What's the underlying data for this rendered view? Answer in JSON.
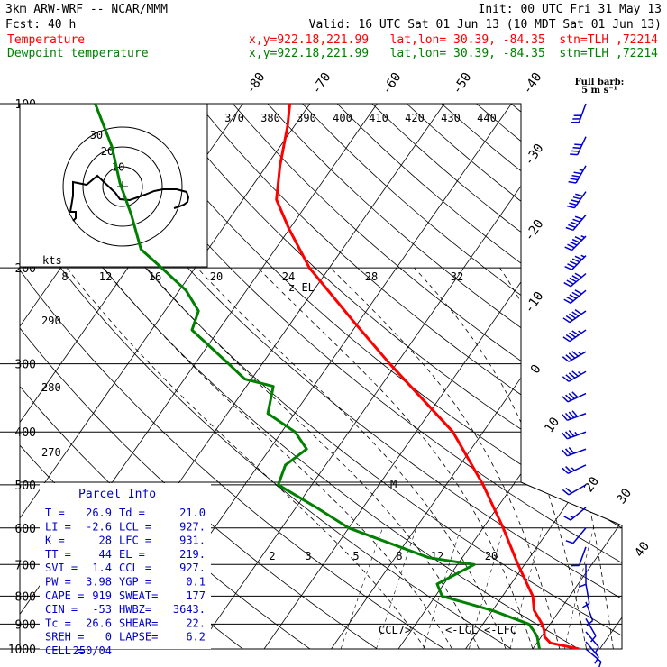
{
  "header": {
    "model": "3km ARW-WRF -- NCAR/MMM",
    "init": "Init: 00 UTC Fri 31 May 13",
    "fcst": "Fcst:    40 h",
    "valid": "Valid: 16 UTC Sat 01 Jun 13 (10 MDT Sat 01 Jun 13)"
  },
  "legend": [
    {
      "name": "Temperature",
      "loc": "x,y=922.18,221.99   lat,lon= 30.39, -84.35  stn=TLH ,72214",
      "color": "#ff0000"
    },
    {
      "name": "Dewpoint temperature",
      "loc": "x,y=922.18,221.99   lat,lon= 30.39, -84.35  stn=TLH ,72214",
      "color": "#008000"
    }
  ],
  "barb_key": {
    "line1": "Full barb:",
    "line2": "5 m s⁻¹"
  },
  "hodograph": {
    "units": "kts",
    "ring_labels": [
      "10",
      "20",
      "30"
    ]
  },
  "parcel_info": {
    "title": "Parcel Info",
    "rows": [
      [
        "T  =",
        "26.9",
        "Td =",
        "21.0"
      ],
      [
        "LI =",
        "-2.6",
        "LCL =",
        "927."
      ],
      [
        "K  =",
        "28",
        "LFC =",
        "931."
      ],
      [
        "TT =",
        "44",
        "EL  =",
        "219."
      ],
      [
        "SVI =",
        "1.4",
        "CCL =",
        "927."
      ],
      [
        "PW =",
        "3.98",
        "YGP =",
        "0.1"
      ],
      [
        "CAPE =",
        "919",
        "SWEAT=",
        "177"
      ],
      [
        "CIN =",
        "-53",
        "HWBZ=",
        "3643."
      ],
      [
        "Tc =",
        "26.6",
        "SHEAR=",
        "22."
      ],
      [
        "SREH =",
        "0",
        "LAPSE=",
        "6.2"
      ],
      [
        "CELL =",
        "250/04",
        "",
        ""
      ]
    ]
  },
  "chart_data": {
    "type": "skew-T log-P sounding",
    "y_axis": "pressure (hPa)",
    "pressure_ticks": [
      100,
      200,
      300,
      400,
      500,
      600,
      700,
      800,
      900,
      1000
    ],
    "pressure_range": [
      1000,
      100
    ],
    "isotherm_labels": [
      -80,
      -70,
      -60,
      -50,
      -40,
      -30,
      -20,
      -10,
      0,
      10,
      20,
      30,
      40
    ],
    "theta_labels": [
      370,
      380,
      390,
      400,
      410,
      420,
      430,
      440
    ],
    "mixing_ratio_upper": [
      8,
      12,
      16,
      20,
      24,
      28,
      32
    ],
    "mixing_ratio_lower": [
      2,
      3,
      5,
      8,
      12,
      20
    ],
    "dry_adiabat_left_labels": [
      290,
      280,
      270
    ],
    "level_markers": [
      "z-EL",
      "M",
      "CCL",
      "LCL",
      "LFC"
    ],
    "series": [
      {
        "name": "Temperature",
        "color": "#ff0000",
        "points": [
          [
            1000,
            26.9
          ],
          [
            975,
            22.0
          ],
          [
            950,
            20.5
          ],
          [
            925,
            19.8
          ],
          [
            900,
            18.8
          ],
          [
            850,
            16.2
          ],
          [
            800,
            14.5
          ],
          [
            700,
            9.0
          ],
          [
            600,
            3.0
          ],
          [
            500,
            -4.5
          ],
          [
            400,
            -14.5
          ],
          [
            300,
            -31
          ],
          [
            250,
            -41
          ],
          [
            200,
            -53
          ],
          [
            170,
            -60
          ],
          [
            150,
            -65
          ],
          [
            130,
            -68
          ],
          [
            110,
            -71
          ],
          [
            100,
            -73
          ]
        ]
      },
      {
        "name": "Dewpoint temperature",
        "color": "#008000",
        "points": [
          [
            1000,
            21.0
          ],
          [
            950,
            19.4
          ],
          [
            925,
            18.2
          ],
          [
            900,
            16.8
          ],
          [
            850,
            10.0
          ],
          [
            800,
            1.0
          ],
          [
            760,
            -1.0
          ],
          [
            700,
            2.5
          ],
          [
            680,
            -5.0
          ],
          [
            600,
            -20.0
          ],
          [
            550,
            -27.0
          ],
          [
            500,
            -35.0
          ],
          [
            460,
            -36.0
          ],
          [
            430,
            -34.5
          ],
          [
            400,
            -38.0
          ],
          [
            370,
            -44.0
          ],
          [
            330,
            -46.0
          ],
          [
            320,
            -51.0
          ],
          [
            300,
            -55.0
          ],
          [
            260,
            -64.0
          ],
          [
            240,
            -65.0
          ],
          [
            220,
            -69.0
          ],
          [
            200,
            -75.0
          ],
          [
            185,
            -80.0
          ],
          [
            160,
            -85.0
          ],
          [
            140,
            -90.0
          ],
          [
            120,
            -95.0
          ],
          [
            100,
            -102.0
          ]
        ]
      }
    ],
    "hodograph_trace": [
      [
        0.57,
        0.24
      ],
      [
        0.63,
        0.22
      ],
      [
        0.68,
        0.2
      ],
      [
        0.72,
        0.17
      ],
      [
        0.73,
        0.12
      ],
      [
        0.71,
        0.06
      ],
      [
        0.6,
        0.03
      ],
      [
        0.45,
        0.03
      ],
      [
        0.35,
        0.05
      ],
      [
        0.25,
        0.09
      ],
      [
        0.08,
        0.15
      ],
      [
        -0.03,
        0.14
      ],
      [
        -0.08,
        0.07
      ],
      [
        -0.28,
        -0.12
      ],
      [
        -0.4,
        -0.02
      ],
      [
        -0.55,
        -0.05
      ],
      [
        -0.55,
        0.1
      ],
      [
        -0.58,
        0.28
      ],
      [
        -0.52,
        0.28
      ],
      [
        -0.52,
        0.35
      ],
      [
        -0.55,
        0.38
      ]
    ],
    "wind_barbs": [
      {
        "p": 100,
        "dir": 200,
        "spd": 6
      },
      {
        "p": 115,
        "dir": 205,
        "spd": 8
      },
      {
        "p": 130,
        "dir": 210,
        "spd": 9
      },
      {
        "p": 145,
        "dir": 215,
        "spd": 10
      },
      {
        "p": 160,
        "dir": 220,
        "spd": 10
      },
      {
        "p": 175,
        "dir": 225,
        "spd": 11
      },
      {
        "p": 190,
        "dir": 225,
        "spd": 11
      },
      {
        "p": 205,
        "dir": 230,
        "spd": 10
      },
      {
        "p": 220,
        "dir": 230,
        "spd": 10
      },
      {
        "p": 240,
        "dir": 235,
        "spd": 10
      },
      {
        "p": 260,
        "dir": 235,
        "spd": 9
      },
      {
        "p": 285,
        "dir": 240,
        "spd": 9
      },
      {
        "p": 310,
        "dir": 240,
        "spd": 9
      },
      {
        "p": 340,
        "dir": 245,
        "spd": 8
      },
      {
        "p": 370,
        "dir": 250,
        "spd": 8
      },
      {
        "p": 400,
        "dir": 250,
        "spd": 7
      },
      {
        "p": 430,
        "dir": 250,
        "spd": 6
      },
      {
        "p": 460,
        "dir": 245,
        "spd": 5
      },
      {
        "p": 500,
        "dir": 240,
        "spd": 4
      },
      {
        "p": 550,
        "dir": 230,
        "spd": 3
      },
      {
        "p": 600,
        "dir": 220,
        "spd": 2
      },
      {
        "p": 650,
        "dir": 200,
        "spd": 2
      },
      {
        "p": 700,
        "dir": 180,
        "spd": 2
      },
      {
        "p": 760,
        "dir": 170,
        "spd": 2
      },
      {
        "p": 820,
        "dir": 160,
        "spd": 2
      },
      {
        "p": 880,
        "dir": 150,
        "spd": 2
      },
      {
        "p": 930,
        "dir": 140,
        "spd": 2
      },
      {
        "p": 970,
        "dir": 140,
        "spd": 2
      },
      {
        "p": 1000,
        "dir": 130,
        "spd": 2
      }
    ]
  }
}
